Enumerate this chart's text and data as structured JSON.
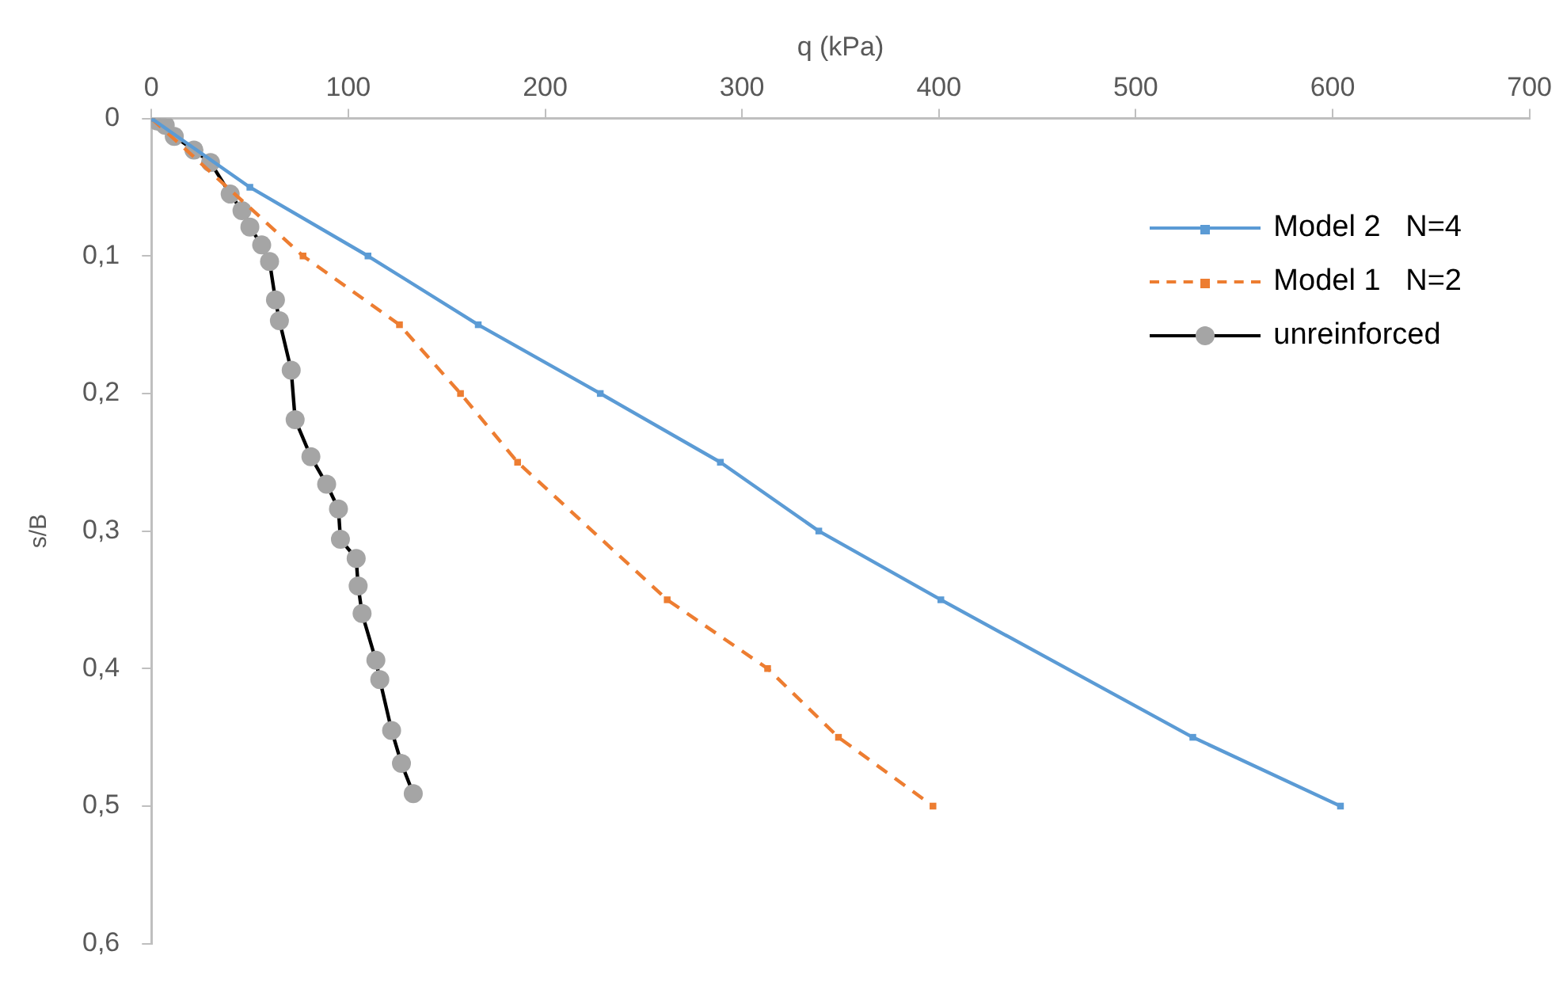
{
  "chart_data": {
    "type": "line",
    "xlabel": "q (kPa)",
    "ylabel": "s/B",
    "xlim": [
      0,
      700
    ],
    "xticks": [
      0,
      100,
      200,
      300,
      400,
      500,
      600,
      700
    ],
    "ylim": [
      0.6,
      0
    ],
    "yticks": [
      0,
      {
        "value": 0.1,
        "label": "0,1"
      },
      {
        "value": 0.2,
        "label": "0,2"
      },
      {
        "value": 0.3,
        "label": "0,3"
      },
      {
        "value": 0.4,
        "label": "0,4"
      },
      {
        "value": 0.5,
        "label": "0,5"
      },
      {
        "value": 0.6,
        "label": "0,6"
      }
    ],
    "grid": false,
    "legend": "top right",
    "series": [
      {
        "name": "Model 2   N=4",
        "color": "#5b9bd5",
        "marker": "square",
        "line_style": "solid",
        "x": [
          0,
          50,
          110,
          166,
          228,
          289,
          339,
          401,
          529,
          604
        ],
        "values": [
          0,
          0.05,
          0.1,
          0.15,
          0.2,
          0.25,
          0.3,
          0.35,
          0.45,
          0.5
        ]
      },
      {
        "name": "Model 1   N=2",
        "color": "#ed7d31",
        "marker": "square",
        "line_style": "dashed",
        "x": [
          0,
          77,
          126,
          157,
          186,
          262,
          313,
          349,
          397
        ],
        "values": [
          0,
          0.1,
          0.15,
          0.2,
          0.25,
          0.35,
          0.4,
          0.45,
          0.5
        ]
      },
      {
        "name": "unreinforced",
        "color": "#000000",
        "marker": "circle",
        "line_style": "solid",
        "x": [
          0,
          3,
          7,
          11.6,
          21.6,
          30,
          40,
          46,
          50,
          56,
          60,
          63,
          65,
          71,
          73,
          81,
          89,
          95,
          96,
          104,
          105,
          107,
          114,
          116,
          122,
          127,
          133
        ],
        "values": [
          0,
          0.002,
          0.005,
          0.013,
          0.023,
          0.032,
          0.055,
          0.067,
          0.079,
          0.092,
          0.104,
          0.132,
          0.147,
          0.183,
          0.219,
          0.246,
          0.266,
          0.284,
          0.306,
          0.32,
          0.34,
          0.36,
          0.394,
          0.408,
          0.445,
          0.469,
          0.491
        ]
      }
    ]
  }
}
